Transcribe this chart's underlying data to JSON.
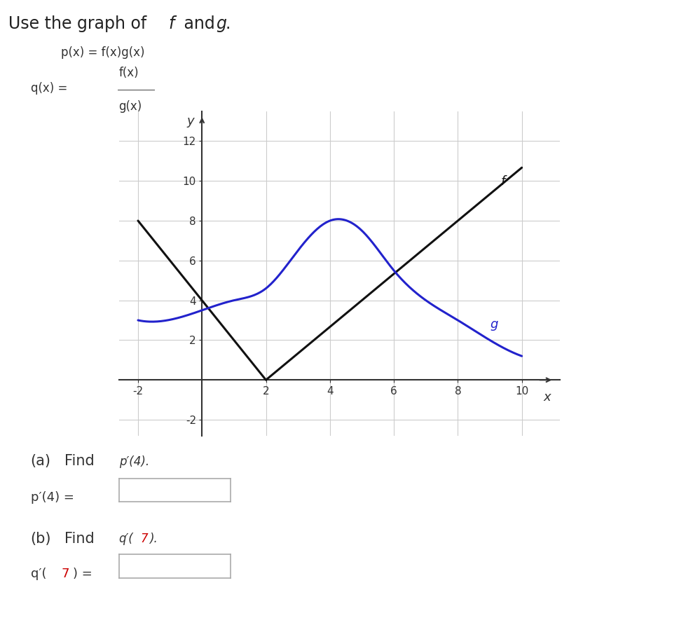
{
  "title": "Use the graph of  f  and  g.",
  "bg_color": "#ffffff",
  "f_color": "#111111",
  "g_color": "#2222cc",
  "f_label": "f",
  "g_label": "g",
  "xlim": [
    -2.6,
    11.2
  ],
  "ylim": [
    -2.8,
    13.5
  ],
  "xticks": [
    -2,
    2,
    4,
    6,
    8,
    10
  ],
  "yticks": [
    -2,
    2,
    4,
    6,
    8,
    10,
    12
  ],
  "grid_color": "#cccccc",
  "f_points": [
    [
      -2,
      8
    ],
    [
      2,
      0
    ],
    [
      10,
      10.667
    ]
  ],
  "g_knots_x": [
    -2,
    0,
    1,
    2,
    3,
    4,
    5,
    6,
    7,
    8,
    9,
    10
  ],
  "g_knots_y": [
    3.0,
    3.5,
    4.0,
    4.6,
    6.5,
    8.0,
    7.5,
    5.5,
    4.0,
    3.0,
    2.0,
    1.2
  ]
}
